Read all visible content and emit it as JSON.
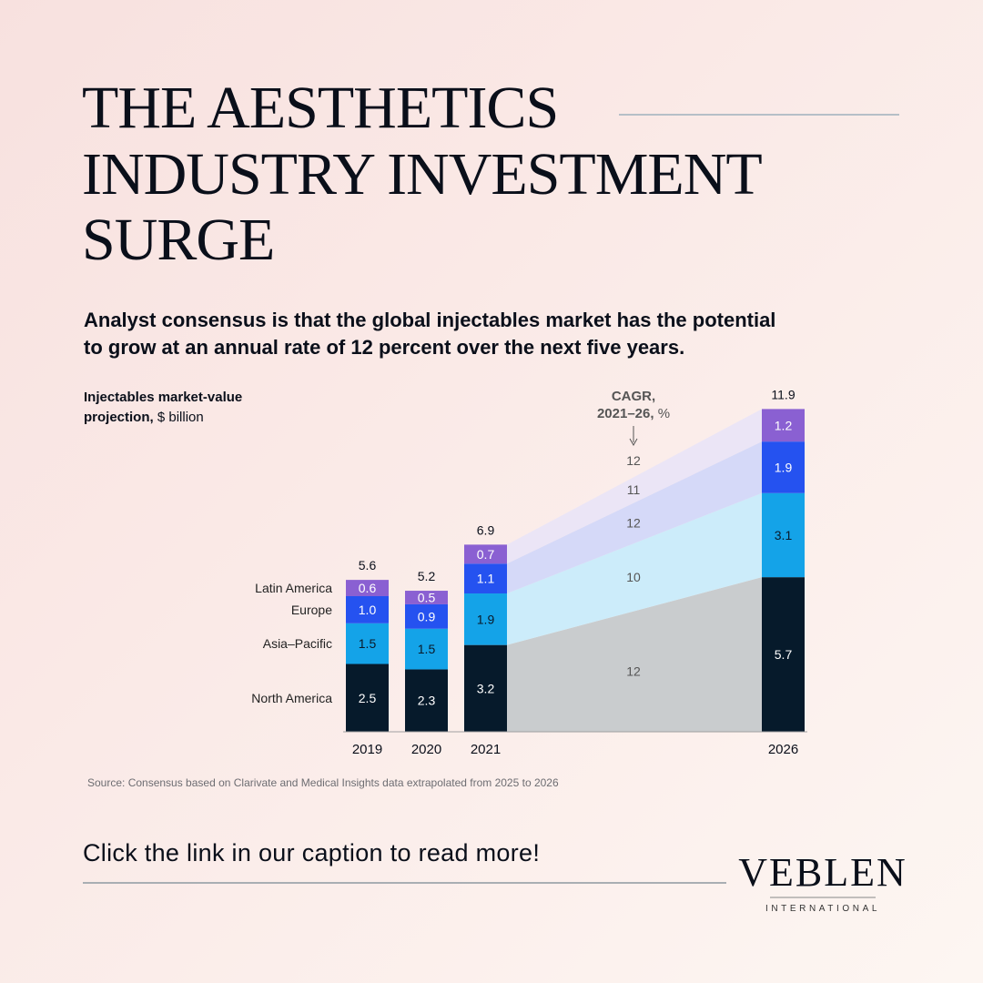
{
  "header": {
    "title": [
      "THE AESTHETICS",
      "INDUSTRY INVESTMENT",
      "SURGE"
    ],
    "subtitle": [
      "Analyst consensus is that the global injectables market has the potential",
      "to grow at an annual rate of 12 percent over the next five years."
    ]
  },
  "chart_data": {
    "type": "stacked-bar",
    "unit_title": [
      "Injectables market-value",
      "projection,"
    ],
    "unit": "$ billion",
    "categories": [
      "2019",
      "2020",
      "2021",
      "2026"
    ],
    "series": [
      {
        "name": "North America",
        "color": "#061a2b",
        "area_color": "#c9ccce",
        "label_color": "#ffffff",
        "values": [
          2.5,
          2.3,
          3.2,
          5.7
        ],
        "cagr": 12
      },
      {
        "name": "Asia–Pacific",
        "color": "#14a3e8",
        "area_color": "#ccecfa",
        "label_color": "#0a1a2a",
        "values": [
          1.5,
          1.5,
          1.9,
          3.1
        ],
        "cagr": 10
      },
      {
        "name": "Europe",
        "color": "#2552f0",
        "area_color": "#d5d9f8",
        "label_color": "#ffffff",
        "values": [
          1.0,
          0.9,
          1.1,
          1.9
        ],
        "value_labels": [
          "1.0",
          "0.9",
          "1.1",
          "1.9"
        ],
        "cagr": 12
      },
      {
        "name": "Latin America",
        "color": "#8a60d2",
        "area_color": "#ebe5f6",
        "label_color": "#ffffff",
        "values": [
          0.6,
          0.5,
          0.7,
          1.2
        ],
        "cagr": 11
      }
    ],
    "totals": [
      5.6,
      5.2,
      6.9,
      11.9
    ],
    "cagr_title": [
      "CAGR,",
      "2021–26,"
    ],
    "cagr_unit": "%",
    "total_cagr": 12,
    "source": "Source: Consensus based on Clarivate and Medical Insights data extrapolated from 2025 to 2026"
  },
  "footer": {
    "cta": "Click the link in our caption to read more!",
    "brand": "VEBLEN",
    "brand_sub": "INTERNATIONAL"
  }
}
